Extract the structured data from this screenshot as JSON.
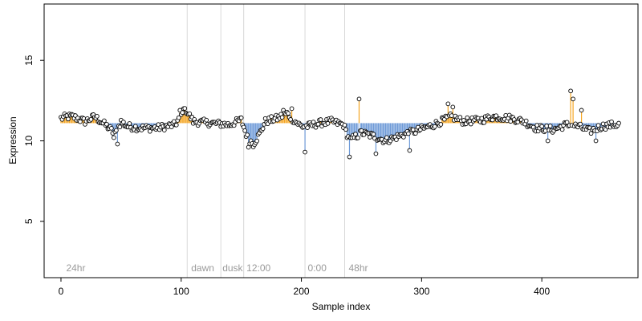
{
  "chart_data": {
    "type": "scatter",
    "xlabel": "Sample index",
    "ylabel": "Expression",
    "xlim": [
      -14,
      480
    ],
    "ylim": [
      1.5,
      18.5
    ],
    "xticks": [
      0,
      100,
      200,
      300,
      400
    ],
    "yticks": [
      5,
      10,
      15
    ],
    "baseline": 11.1,
    "colors": {
      "above": "#f5a623",
      "below": "#6f9bd8",
      "separator": "#d8d8d8",
      "point_stroke": "#000000",
      "point_fill": "#ffffff"
    },
    "separators": [
      105,
      133,
      152,
      203,
      236
    ],
    "segment_labels": [
      {
        "x": 3,
        "text": "24hr"
      },
      {
        "x": 107,
        "text": "dawn"
      },
      {
        "x": 133,
        "text": "dusk"
      },
      {
        "x": 153,
        "text": "12:00"
      },
      {
        "x": 204,
        "text": "0:00"
      },
      {
        "x": 238,
        "text": "48hr"
      }
    ],
    "anchors": [
      [
        0,
        11.4
      ],
      [
        5,
        11.5
      ],
      [
        10,
        11.5
      ],
      [
        20,
        11.2
      ],
      [
        28,
        11.5
      ],
      [
        35,
        11.1
      ],
      [
        40,
        10.8
      ],
      [
        45,
        10.4
      ],
      [
        50,
        11.2
      ],
      [
        55,
        10.9
      ],
      [
        65,
        10.8
      ],
      [
        80,
        10.8
      ],
      [
        95,
        11.0
      ],
      [
        100,
        11.6
      ],
      [
        104,
        11.9
      ],
      [
        110,
        11.2
      ],
      [
        125,
        11.1
      ],
      [
        140,
        11.0
      ],
      [
        150,
        11.3
      ],
      [
        155,
        10.2
      ],
      [
        160,
        9.8
      ],
      [
        165,
        10.4
      ],
      [
        170,
        11.2
      ],
      [
        180,
        11.4
      ],
      [
        188,
        11.7
      ],
      [
        195,
        11.2
      ],
      [
        200,
        10.9
      ],
      [
        205,
        10.9
      ],
      [
        215,
        11.1
      ],
      [
        225,
        11.2
      ],
      [
        235,
        11.0
      ],
      [
        240,
        10.0
      ],
      [
        250,
        10.5
      ],
      [
        260,
        10.3
      ],
      [
        270,
        10.0
      ],
      [
        285,
        10.4
      ],
      [
        295,
        10.6
      ],
      [
        310,
        11.0
      ],
      [
        325,
        11.5
      ],
      [
        335,
        11.2
      ],
      [
        350,
        11.3
      ],
      [
        360,
        11.5
      ],
      [
        375,
        11.4
      ],
      [
        385,
        11.2
      ],
      [
        395,
        10.8
      ],
      [
        410,
        10.7
      ],
      [
        420,
        11.0
      ],
      [
        430,
        10.9
      ],
      [
        440,
        10.6
      ],
      [
        450,
        10.9
      ],
      [
        460,
        11.0
      ]
    ],
    "spikes": [
      [
        44,
        10.2
      ],
      [
        47,
        9.8
      ],
      [
        99,
        11.9
      ],
      [
        102,
        12.0
      ],
      [
        156,
        9.6
      ],
      [
        185,
        11.9
      ],
      [
        192,
        12.0
      ],
      [
        203,
        9.3
      ],
      [
        240,
        9.0
      ],
      [
        248,
        12.6
      ],
      [
        262,
        9.2
      ],
      [
        290,
        9.4
      ],
      [
        322,
        12.3
      ],
      [
        326,
        12.1
      ],
      [
        424,
        13.1
      ],
      [
        426,
        12.6
      ],
      [
        433,
        11.9
      ],
      [
        405,
        10.0
      ],
      [
        445,
        10.0
      ]
    ],
    "n_points": 465,
    "jitter": 0.22
  }
}
